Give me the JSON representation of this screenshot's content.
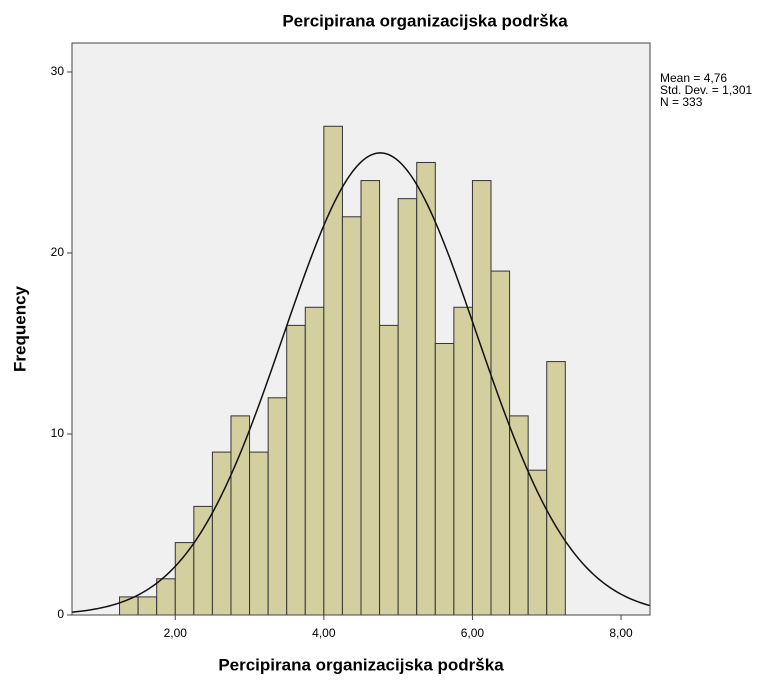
{
  "chart_data": {
    "type": "histogram",
    "title": "Percipirana organizacijska podrška",
    "x_label": "Percipirana organizacijska podrška",
    "y_label": "Frequency",
    "bins": [
      1.25,
      1.5,
      1.75,
      2.0,
      2.25,
      2.5,
      2.75,
      3.0,
      3.25,
      3.5,
      3.75,
      4.0,
      4.25,
      4.5,
      4.75,
      5.0,
      5.25,
      5.5,
      5.75,
      6.0,
      6.25,
      6.5,
      6.75,
      7.0,
      7.25
    ],
    "values": [
      1,
      1,
      2,
      4,
      6,
      9,
      11,
      9,
      12,
      16,
      17,
      27,
      22,
      24,
      16,
      23,
      25,
      15,
      17,
      24,
      19,
      11,
      8,
      14
    ],
    "color": "#d4cf9f",
    "xlim": [
      0.61,
      8.39
    ],
    "ylim": [
      0,
      31.6
    ],
    "xticks": [
      {
        "value": 2,
        "label": "2,00"
      },
      {
        "value": 4,
        "label": "4,00"
      },
      {
        "value": 6,
        "label": "6,00"
      },
      {
        "value": 8,
        "label": "8,00"
      }
    ],
    "yticks": [
      0,
      10,
      20,
      30
    ],
    "stats": [
      {
        "value": 4.76,
        "label": "Mean = 4,76"
      },
      {
        "value": 1.301,
        "label": "Std. Dev. = 1,301"
      },
      {
        "value": 333,
        "label": "N = 333"
      }
    ],
    "normal_curve": true
  }
}
